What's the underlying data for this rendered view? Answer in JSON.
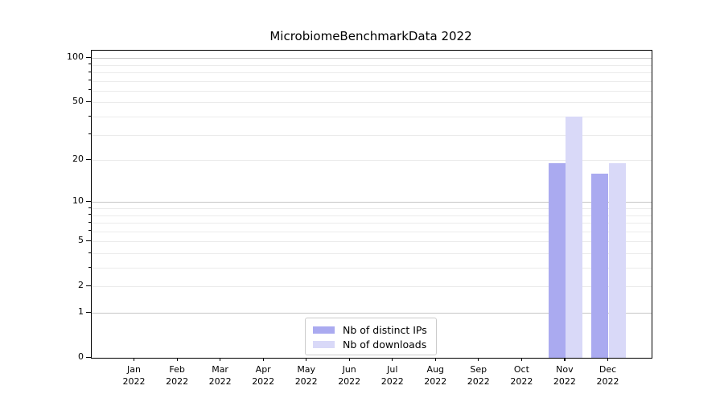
{
  "chart_data": {
    "type": "bar",
    "title": "MicrobiomeBenchmarkData 2022",
    "categories": [
      "Jan",
      "Feb",
      "Mar",
      "Apr",
      "May",
      "Jun",
      "Jul",
      "Aug",
      "Sep",
      "Oct",
      "Nov",
      "Dec"
    ],
    "x_year": "2022",
    "series": [
      {
        "name": "Nb of distinct IPs",
        "color": "#aaaaf0",
        "values": [
          0,
          0,
          0,
          0,
          0,
          0,
          0,
          0,
          0,
          0,
          19,
          16
        ]
      },
      {
        "name": "Nb of downloads",
        "color": "#d9d9f8",
        "values": [
          0,
          0,
          0,
          0,
          0,
          0,
          0,
          0,
          0,
          0,
          40,
          19
        ]
      }
    ],
    "y_axis": {
      "scale": "log1p",
      "max": 112,
      "ticks": [
        100,
        50,
        20,
        10,
        5,
        2,
        1,
        0
      ],
      "major_grid": [
        1,
        10,
        100
      ],
      "minor_grid": [
        2,
        3,
        4,
        5,
        6,
        7,
        8,
        9,
        20,
        30,
        40,
        50,
        60,
        70,
        80,
        90
      ]
    },
    "legend_position": "lower center",
    "colors": {
      "major_grid": "#c6c6c6",
      "minor_grid": "#ebebeb",
      "spine": "#000000",
      "background": "#ffffff"
    }
  }
}
